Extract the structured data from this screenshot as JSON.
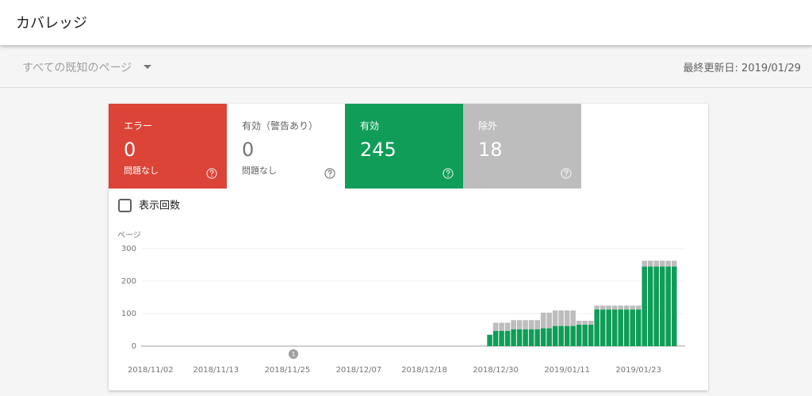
{
  "header": {
    "title": "カバレッジ"
  },
  "toolbar": {
    "filter": "すべての既知のページ",
    "last_updated": "最終更新日: 2019/01/29"
  },
  "tiles": [
    {
      "label": "エラー",
      "value": 0,
      "note": "問題なし",
      "color": "#db4437"
    },
    {
      "label": "有効（警告あり）",
      "value": 0,
      "note": "問題なし",
      "color": "#ffffff"
    },
    {
      "label": "有効",
      "value": 245,
      "color": "#0f9d58"
    },
    {
      "label": "除外",
      "value": 18,
      "color": "#bdbdbd"
    }
  ],
  "checkbox": {
    "label": "表示回数"
  },
  "chart_data": {
    "type": "bar",
    "stacked": true,
    "y_label": "ページ",
    "annotation": "1",
    "categories": [
      null,
      null,
      "2018/11/02",
      null,
      null,
      null,
      null,
      null,
      null,
      null,
      null,
      null,
      null,
      "2018/11/13",
      null,
      null,
      null,
      null,
      null,
      null,
      null,
      null,
      null,
      null,
      null,
      "2018/11/25",
      null,
      null,
      null,
      null,
      null,
      null,
      null,
      null,
      null,
      null,
      null,
      "2018/12/07",
      null,
      null,
      null,
      null,
      null,
      null,
      null,
      null,
      null,
      null,
      "2018/12/18",
      null,
      null,
      null,
      null,
      null,
      null,
      null,
      null,
      null,
      null,
      null,
      "2018/12/30",
      null,
      null,
      null,
      null,
      null,
      null,
      null,
      null,
      null,
      null,
      null,
      "2019/01/11",
      null,
      null,
      null,
      null,
      null,
      null,
      null,
      null,
      null,
      null,
      null,
      "2019/01/23",
      null,
      null,
      null,
      null,
      null,
      null
    ],
    "series": [
      {
        "name": "有効",
        "color": "#0f9d58",
        "values": [
          null,
          null,
          null,
          null,
          null,
          null,
          null,
          null,
          null,
          null,
          null,
          null,
          null,
          null,
          null,
          null,
          null,
          null,
          null,
          null,
          null,
          null,
          null,
          null,
          null,
          null,
          null,
          null,
          null,
          null,
          null,
          null,
          null,
          null,
          null,
          null,
          null,
          null,
          null,
          null,
          null,
          null,
          null,
          null,
          null,
          null,
          null,
          null,
          null,
          null,
          null,
          null,
          null,
          null,
          null,
          null,
          null,
          null,
          null,
          35,
          47,
          47,
          47,
          52,
          52,
          52,
          52,
          52,
          55,
          55,
          62,
          62,
          62,
          62,
          66,
          66,
          66,
          113,
          113,
          113,
          113,
          113,
          113,
          113,
          113,
          245,
          245,
          245,
          245,
          245,
          245
        ]
      },
      {
        "name": "除外",
        "color": "#bdbdbd",
        "values": [
          null,
          null,
          null,
          null,
          null,
          null,
          null,
          null,
          null,
          null,
          null,
          null,
          null,
          null,
          null,
          null,
          null,
          null,
          null,
          null,
          null,
          null,
          null,
          null,
          null,
          null,
          null,
          null,
          null,
          null,
          null,
          null,
          null,
          null,
          null,
          null,
          null,
          null,
          null,
          null,
          null,
          null,
          null,
          null,
          null,
          null,
          null,
          null,
          null,
          null,
          null,
          null,
          null,
          null,
          null,
          null,
          null,
          null,
          null,
          0,
          25,
          25,
          25,
          28,
          28,
          28,
          28,
          28,
          48,
          48,
          48,
          48,
          48,
          48,
          12,
          12,
          12,
          12,
          12,
          12,
          12,
          12,
          12,
          12,
          12,
          18,
          18,
          18,
          18,
          18,
          18
        ]
      }
    ],
    "ylim": [
      0,
      300
    ],
    "yticks": [
      0,
      100,
      200,
      300
    ],
    "grid": true
  }
}
